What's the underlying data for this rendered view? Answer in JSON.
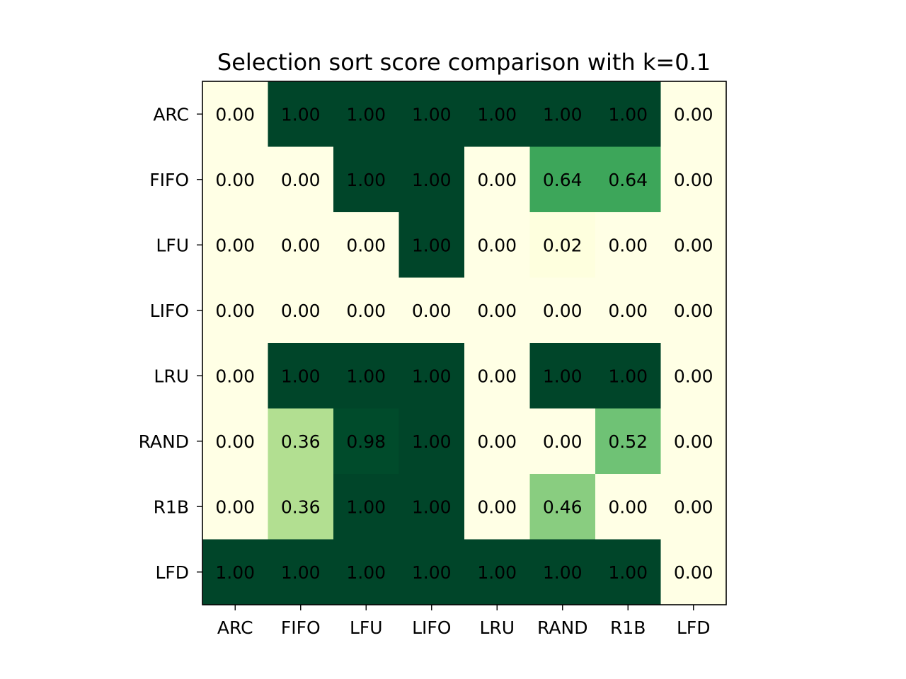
{
  "chart_data": {
    "type": "heatmap",
    "title": "Selection sort score comparison with k=0.1",
    "xlabel": "",
    "ylabel": "",
    "x_categories": [
      "ARC",
      "FIFO",
      "LFU",
      "LIFO",
      "LRU",
      "RAND",
      "R1B",
      "LFD"
    ],
    "y_categories": [
      "ARC",
      "FIFO",
      "LFU",
      "LIFO",
      "LRU",
      "RAND",
      "R1B",
      "LFD"
    ],
    "values": [
      [
        0.0,
        1.0,
        1.0,
        1.0,
        1.0,
        1.0,
        1.0,
        0.0
      ],
      [
        0.0,
        0.0,
        1.0,
        1.0,
        0.0,
        0.64,
        0.64,
        0.0
      ],
      [
        0.0,
        0.0,
        0.0,
        1.0,
        0.0,
        0.02,
        0.0,
        0.0
      ],
      [
        0.0,
        0.0,
        0.0,
        0.0,
        0.0,
        0.0,
        0.0,
        0.0
      ],
      [
        0.0,
        1.0,
        1.0,
        1.0,
        0.0,
        1.0,
        1.0,
        0.0
      ],
      [
        0.0,
        0.36,
        0.98,
        1.0,
        0.0,
        0.0,
        0.52,
        0.0
      ],
      [
        0.0,
        0.36,
        1.0,
        1.0,
        0.0,
        0.46,
        0.0,
        0.0
      ],
      [
        1.0,
        1.0,
        1.0,
        1.0,
        1.0,
        1.0,
        1.0,
        0.0
      ]
    ],
    "value_format": "0.00",
    "colormap": "YlGn",
    "vmin": 0,
    "vmax": 1,
    "grid": false,
    "legend": "none"
  }
}
